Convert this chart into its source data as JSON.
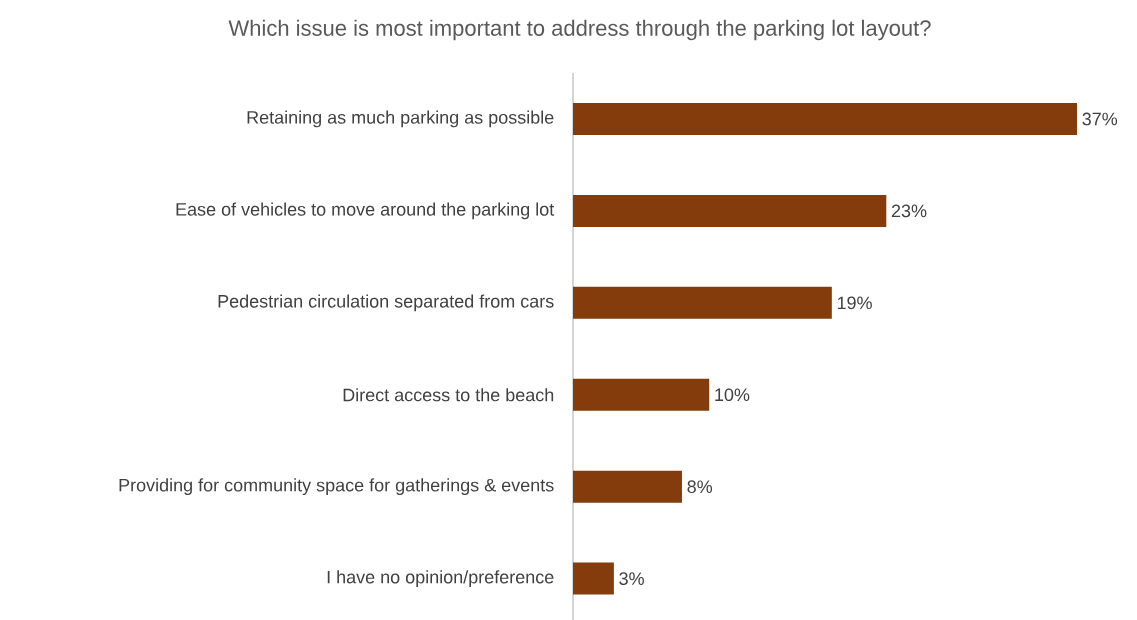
{
  "chart_data": {
    "type": "bar",
    "orientation": "horizontal",
    "title": "Which issue is most important to address through the parking lot layout?",
    "categories": [
      "Retaining as much parking as possible",
      "Ease of vehicles to move around the parking lot",
      "Pedestrian circulation separated from cars",
      "Direct access to the beach",
      "Providing for community space for gatherings & events",
      "I have no opinion/preference"
    ],
    "values": [
      37,
      23,
      19,
      10,
      8,
      3
    ],
    "value_labels": [
      "37%",
      "23%",
      "19%",
      "10%",
      "8%",
      "3%"
    ],
    "color": "#843c0c"
  }
}
